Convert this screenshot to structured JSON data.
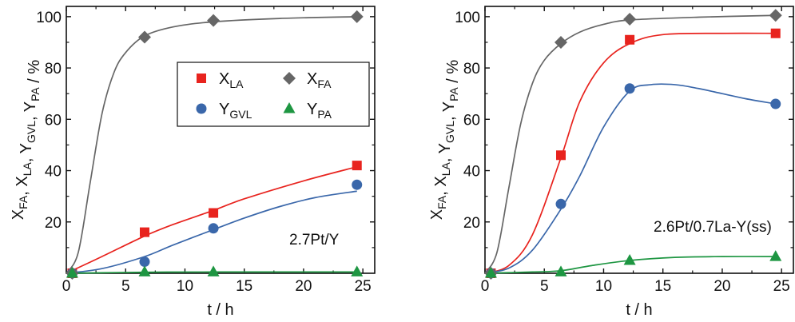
{
  "chart_data": [
    {
      "type": "line",
      "panel": "left",
      "annotation": "2.7Pt/Y",
      "xlabel": "t / h",
      "ylabel": {
        "parts": [
          [
            "X",
            "FA",
            ", "
          ],
          [
            "X",
            "LA",
            ", "
          ],
          [
            "Y",
            "GVL",
            ", "
          ],
          [
            "Y",
            "PA",
            " / %"
          ]
        ]
      },
      "xlim": [
        0,
        26
      ],
      "ylim": [
        0,
        104
      ],
      "xticks": [
        0,
        5,
        10,
        15,
        20,
        25
      ],
      "yticks": [
        20,
        40,
        60,
        80,
        100
      ],
      "legend_position": "upper-center",
      "series": [
        {
          "name": "X_LA",
          "name_main": "X",
          "name_sub": "LA",
          "marker": "square",
          "color": "#e8231e",
          "x": [
            0.5,
            6.6,
            12.4,
            24.5
          ],
          "y": [
            0,
            16,
            23.5,
            42
          ],
          "curve": [
            [
              0,
              0
            ],
            [
              3,
              6.5
            ],
            [
              6.6,
              14.5
            ],
            [
              9,
              19
            ],
            [
              12.4,
              24.5
            ],
            [
              15,
              29
            ],
            [
              20,
              36
            ],
            [
              24.5,
              41.5
            ]
          ]
        },
        {
          "name": "Y_GVL",
          "name_main": "Y",
          "name_sub": "GVL",
          "marker": "circle",
          "color": "#3a67aa",
          "x": [
            0.5,
            6.6,
            12.4,
            24.5
          ],
          "y": [
            0,
            4.5,
            17.5,
            34.5
          ],
          "curve": [
            [
              0,
              0
            ],
            [
              3,
              1.8
            ],
            [
              6.6,
              6.5
            ],
            [
              9,
              11
            ],
            [
              12.4,
              17
            ],
            [
              15,
              21.5
            ],
            [
              18,
              26
            ],
            [
              21,
              29.5
            ],
            [
              24.5,
              32
            ]
          ]
        },
        {
          "name": "X_FA",
          "name_main": "X",
          "name_sub": "FA",
          "marker": "diamond",
          "color": "#666666",
          "x": [
            0.5,
            6.6,
            12.4,
            24.5
          ],
          "y": [
            0,
            92,
            98.5,
            100
          ],
          "curve": [
            [
              0,
              0
            ],
            [
              1,
              8
            ],
            [
              2,
              35
            ],
            [
              3,
              62
            ],
            [
              4,
              78
            ],
            [
              5,
              86
            ],
            [
              6.6,
              92.5
            ],
            [
              9,
              96
            ],
            [
              12.4,
              98
            ],
            [
              18,
              99.3
            ],
            [
              24.5,
              100
            ]
          ]
        },
        {
          "name": "Y_PA",
          "name_main": "Y",
          "name_sub": "PA",
          "marker": "triangle",
          "color": "#1e9642",
          "x": [
            0.5,
            6.6,
            12.4,
            24.5
          ],
          "y": [
            0,
            0.5,
            0.5,
            0.5
          ],
          "curve": [
            [
              0,
              0
            ],
            [
              6.6,
              0.4
            ],
            [
              12.4,
              0.5
            ],
            [
              24.5,
              0.5
            ]
          ]
        }
      ]
    },
    {
      "type": "line",
      "panel": "right",
      "annotation": "2.6Pt/0.7La-Y(ss)",
      "xlabel": "t / h",
      "ylabel": {
        "parts": [
          [
            "X",
            "FA",
            ", "
          ],
          [
            "X",
            "LA",
            ", "
          ],
          [
            "Y",
            "GVL",
            ", "
          ],
          [
            "Y",
            "PA",
            " / %"
          ]
        ]
      },
      "xlim": [
        0,
        26
      ],
      "ylim": [
        0,
        104
      ],
      "xticks": [
        0,
        5,
        10,
        15,
        20,
        25
      ],
      "yticks": [
        20,
        40,
        60,
        80,
        100
      ],
      "series": [
        {
          "name": "X_LA",
          "marker": "square",
          "color": "#e8231e",
          "x": [
            0.5,
            6.4,
            12.2,
            24.5
          ],
          "y": [
            0,
            46,
            91,
            93.5
          ],
          "curve": [
            [
              0,
              0
            ],
            [
              2,
              3
            ],
            [
              4,
              15
            ],
            [
              6.4,
              45
            ],
            [
              8,
              67
            ],
            [
              10,
              82
            ],
            [
              12.2,
              89.5
            ],
            [
              15,
              93
            ],
            [
              20,
              93.5
            ],
            [
              24.5,
              93.5
            ]
          ]
        },
        {
          "name": "Y_GVL",
          "marker": "circle",
          "color": "#3a67aa",
          "x": [
            0.5,
            6.4,
            12.2,
            24.5
          ],
          "y": [
            0,
            27,
            72,
            66
          ],
          "curve": [
            [
              0,
              0
            ],
            [
              2,
              2
            ],
            [
              4,
              9
            ],
            [
              6.4,
              25
            ],
            [
              8,
              38
            ],
            [
              10,
              57
            ],
            [
              12.2,
              71
            ],
            [
              14,
              73.5
            ],
            [
              16,
              73.5
            ],
            [
              18,
              72
            ],
            [
              20,
              70
            ],
            [
              22,
              68
            ],
            [
              24.5,
              66
            ]
          ]
        },
        {
          "name": "X_FA",
          "marker": "diamond",
          "color": "#666666",
          "x": [
            0.5,
            6.4,
            12.2,
            24.5
          ],
          "y": [
            0,
            90,
            99,
            100.5
          ],
          "curve": [
            [
              0,
              0
            ],
            [
              1,
              8
            ],
            [
              2,
              33
            ],
            [
              3,
              58
            ],
            [
              4,
              74
            ],
            [
              5,
              83
            ],
            [
              6.4,
              89.5
            ],
            [
              8,
              94
            ],
            [
              10,
              97
            ],
            [
              12.2,
              98.7
            ],
            [
              18,
              99.8
            ],
            [
              24.5,
              100.5
            ]
          ]
        },
        {
          "name": "Y_PA",
          "marker": "triangle",
          "color": "#1e9642",
          "x": [
            0.5,
            6.4,
            12.2,
            24.5
          ],
          "y": [
            0,
            0.5,
            5,
            6.5
          ],
          "curve": [
            [
              0,
              0
            ],
            [
              4,
              0.5
            ],
            [
              6.4,
              1
            ],
            [
              9,
              3
            ],
            [
              12.2,
              5
            ],
            [
              16,
              6.2
            ],
            [
              20,
              6.5
            ],
            [
              24.5,
              6.5
            ]
          ]
        }
      ]
    }
  ]
}
